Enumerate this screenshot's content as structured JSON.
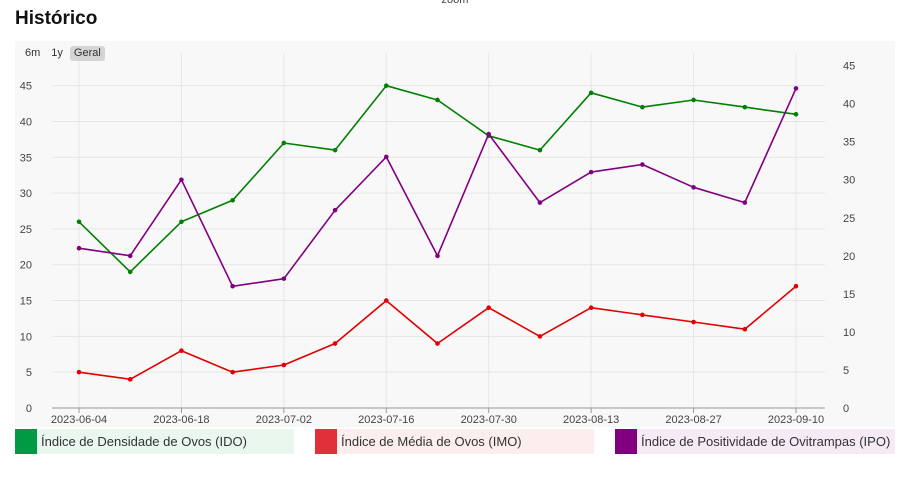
{
  "header": {
    "title": "Histórico",
    "zoom_label": "zoom"
  },
  "range_selector": {
    "buttons": [
      "6m",
      "1y",
      "Geral"
    ],
    "active": "Geral"
  },
  "colors": {
    "ido": "#008000",
    "imo": "#e00000",
    "ipo": "#800080",
    "grid": "#e6e6e6"
  },
  "chart_data": {
    "type": "line",
    "x": [
      "2023-06-04",
      "2023-06-11",
      "2023-06-18",
      "2023-06-25",
      "2023-07-02",
      "2023-07-09",
      "2023-07-16",
      "2023-07-23",
      "2023-07-30",
      "2023-08-06",
      "2023-08-13",
      "2023-08-20",
      "2023-08-27",
      "2023-09-03",
      "2023-09-10"
    ],
    "x_tick_labels": [
      "2023-06-04",
      "2023-06-18",
      "2023-07-02",
      "2023-07-16",
      "2023-07-30",
      "2023-08-13",
      "2023-08-27",
      "2023-09-10"
    ],
    "y_left": {
      "ticks": [
        0,
        5,
        10,
        15,
        20,
        25,
        30,
        35,
        40,
        45
      ],
      "range": [
        0,
        49
      ]
    },
    "y_right": {
      "ticks": [
        0,
        5,
        10,
        15,
        20,
        25,
        30,
        35,
        40,
        45
      ],
      "range": [
        0,
        46
      ]
    },
    "grid": true,
    "legend_position": "bottom",
    "series": [
      {
        "name": "Índice de Densidade de Ovos (IDO)",
        "axis": "left",
        "color": "#008000",
        "legend_bg": "#e9f7ee",
        "swatch": "#009944",
        "values": [
          26,
          19,
          26,
          29,
          37,
          36,
          45,
          43,
          38,
          36,
          44,
          42,
          43,
          42,
          41
        ]
      },
      {
        "name": "Índice de Média de Ovos (IMO)",
        "axis": "left",
        "color": "#e00000",
        "legend_bg": "#fdeeee",
        "swatch": "#e0303a",
        "values": [
          5,
          4,
          8,
          5,
          6,
          9,
          15,
          9,
          14,
          10,
          14,
          13,
          12,
          11,
          17
        ]
      },
      {
        "name": "Índice de Positividade de Ovitrampas (IPO)",
        "axis": "right",
        "color": "#800080",
        "legend_bg": "#f5eaf5",
        "swatch": "#800080",
        "values": [
          21,
          20,
          30,
          16,
          17,
          26,
          33,
          20,
          36,
          27,
          31,
          32,
          29,
          27,
          42
        ]
      }
    ]
  }
}
